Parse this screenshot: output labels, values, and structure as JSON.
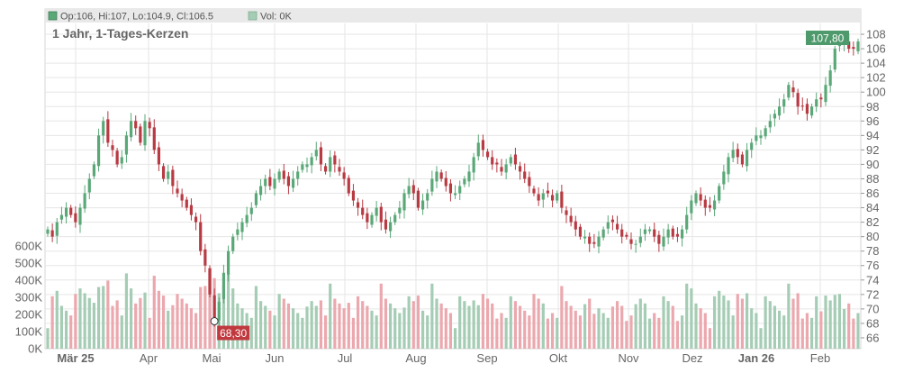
{
  "legend": {
    "ohlc_text": "Op:106, Hi:107, Lo:104.9, Cl:106.5",
    "vol_text": "Vol: 0K"
  },
  "colors": {
    "up": "#5aa878",
    "down": "#b83a43",
    "vol_up": "#a5ccb4",
    "vol_down": "#eba8ae",
    "grid": "#e6e6e6",
    "axis_text": "#666666"
  },
  "chart_data": {
    "type": "candlestick",
    "title": "1 Jahr, 1-Tages-Kerzen",
    "price_axis": {
      "min": 64.5,
      "max": 109.5,
      "ticks": [
        66,
        68,
        70,
        72,
        74,
        76,
        78,
        80,
        82,
        84,
        86,
        88,
        90,
        92,
        94,
        96,
        98,
        100,
        102,
        104,
        106,
        108
      ]
    },
    "volume_axis": {
      "min": 0,
      "max": 600000,
      "ticks": [
        0,
        100000,
        200000,
        300000,
        400000,
        500000,
        600000
      ],
      "tick_labels": [
        "0K",
        "100K",
        "200K",
        "300K",
        "400K",
        "500K",
        "600K"
      ]
    },
    "month_labels": [
      "Mär 25",
      "Apr",
      "Mai",
      "Jun",
      "Jul",
      "Aug",
      "Sep",
      "Okt",
      "Nov",
      "Dez",
      "Jan 26",
      "Feb"
    ],
    "bold_month_labels": [
      "Mär 25",
      "Jan 26"
    ],
    "high_marker": {
      "value": 107.8,
      "label": "107,80"
    },
    "low_marker": {
      "value": 68.3,
      "label": "68,30"
    },
    "close_series": [
      81,
      80,
      82,
      83,
      84,
      83,
      82,
      84,
      86,
      88,
      90,
      94,
      96,
      93,
      92,
      90,
      91,
      94,
      96,
      95,
      93,
      96,
      95,
      92,
      90,
      88,
      89,
      87,
      86,
      85,
      84,
      83,
      82,
      78,
      76,
      72,
      68.3,
      71,
      75,
      78,
      80,
      81,
      82,
      83,
      84,
      86,
      87,
      88,
      87,
      88,
      89,
      88,
      87,
      88,
      89,
      90,
      90,
      91,
      92,
      90,
      89,
      91,
      90,
      89,
      88,
      86,
      85,
      84,
      83,
      82,
      83,
      84,
      82,
      81,
      82,
      83,
      84,
      86,
      87,
      86,
      84,
      85,
      86,
      88,
      89,
      88,
      87,
      86,
      86,
      87,
      88,
      89,
      91,
      93,
      92,
      91,
      90,
      90,
      89,
      90,
      91,
      90,
      89,
      88,
      87,
      86,
      85,
      86,
      86,
      85,
      86,
      84,
      83,
      82,
      81,
      80,
      80,
      79,
      79,
      80,
      81,
      82,
      82,
      81,
      80,
      80,
      79,
      79,
      80,
      81,
      81,
      80,
      79,
      80,
      81,
      80,
      80,
      81,
      83,
      85,
      86,
      85,
      84,
      84,
      85,
      87,
      89,
      91,
      92,
      91,
      90,
      92,
      93,
      94,
      94,
      95,
      96,
      97,
      98,
      99,
      101,
      100,
      98,
      98,
      97,
      98,
      99,
      99,
      101,
      103,
      106,
      107,
      107,
      106,
      106,
      107
    ]
  }
}
